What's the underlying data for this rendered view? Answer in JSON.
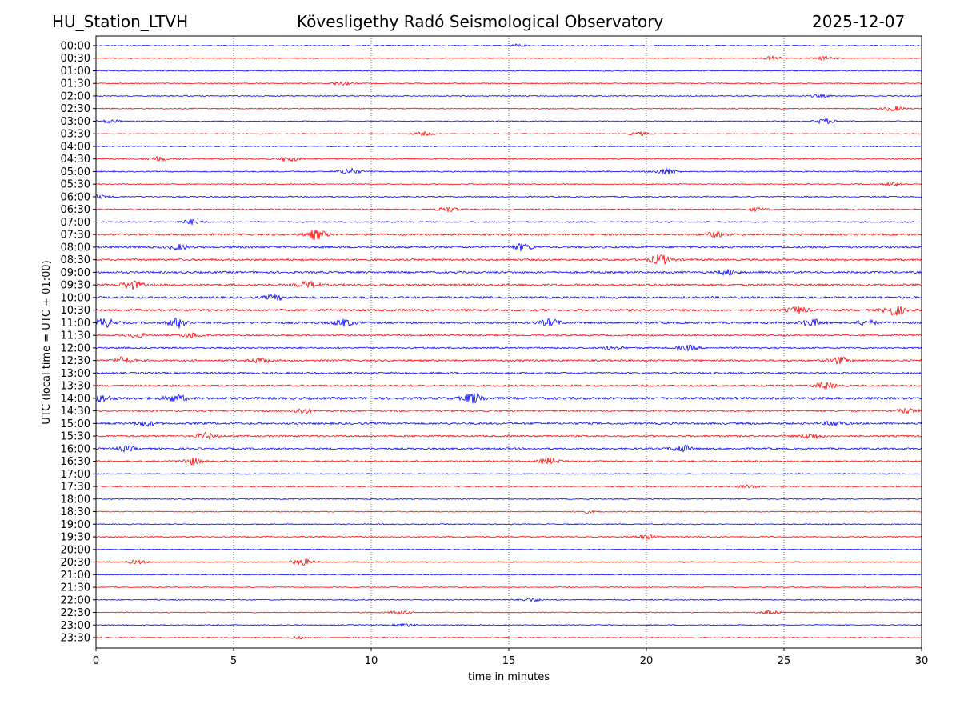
{
  "chart_data": {
    "type": "line",
    "title_left": "HU_Station_LTVH",
    "title": "Kövesligethy Radó Seismological Observatory",
    "title_right": "2025-12-07",
    "xlabel": "time in minutes",
    "ylabel": "UTC (local time = UTC + 01:00)",
    "xlim": [
      0,
      30
    ],
    "xticks": [
      "0",
      "5",
      "10",
      "15",
      "20",
      "25",
      "30"
    ],
    "grid": "vertical dotted at x ticks",
    "colors": [
      "#0000ff",
      "#ff0000"
    ],
    "rows": [
      {
        "label": "00:00",
        "noise": 1,
        "bursts": [
          [
            15.3,
            1.5
          ]
        ]
      },
      {
        "label": "00:30",
        "noise": 1,
        "bursts": [
          [
            24.6,
            2
          ],
          [
            26.5,
            2
          ]
        ]
      },
      {
        "label": "01:00",
        "noise": 1,
        "bursts": []
      },
      {
        "label": "01:30",
        "noise": 1,
        "bursts": [
          [
            8.9,
            2
          ]
        ]
      },
      {
        "label": "02:00",
        "noise": 1,
        "bursts": [
          [
            26.3,
            1.5
          ]
        ]
      },
      {
        "label": "02:30",
        "noise": 1,
        "bursts": [
          [
            29,
            3
          ]
        ]
      },
      {
        "label": "03:00",
        "noise": 1,
        "bursts": [
          [
            0.5,
            2
          ],
          [
            26.5,
            3
          ]
        ]
      },
      {
        "label": "03:30",
        "noise": 1,
        "bursts": [
          [
            11.9,
            2
          ],
          [
            19.8,
            2
          ]
        ]
      },
      {
        "label": "04:00",
        "noise": 1,
        "bursts": []
      },
      {
        "label": "04:30",
        "noise": 1.2,
        "bursts": [
          [
            2.2,
            3
          ],
          [
            7,
            3
          ]
        ]
      },
      {
        "label": "05:00",
        "noise": 1.2,
        "bursts": [
          [
            9.2,
            4
          ],
          [
            20.7,
            4
          ]
        ]
      },
      {
        "label": "05:30",
        "noise": 1,
        "bursts": [
          [
            29,
            2
          ]
        ]
      },
      {
        "label": "06:00",
        "noise": 1.2,
        "bursts": [
          [
            0.1,
            2
          ]
        ]
      },
      {
        "label": "06:30",
        "noise": 1.3,
        "bursts": [
          [
            12.8,
            3
          ],
          [
            24,
            2
          ]
        ]
      },
      {
        "label": "07:00",
        "noise": 1.3,
        "bursts": [
          [
            3.5,
            3
          ]
        ]
      },
      {
        "label": "07:30",
        "noise": 2,
        "bursts": [
          [
            8,
            6
          ],
          [
            22.5,
            3
          ]
        ]
      },
      {
        "label": "08:00",
        "noise": 2,
        "bursts": [
          [
            3,
            3
          ],
          [
            15.5,
            4
          ]
        ]
      },
      {
        "label": "08:30",
        "noise": 2,
        "bursts": [
          [
            20.5,
            6
          ]
        ]
      },
      {
        "label": "09:00",
        "noise": 2,
        "bursts": [
          [
            23,
            3
          ]
        ]
      },
      {
        "label": "09:30",
        "noise": 2.2,
        "bursts": [
          [
            1.3,
            5
          ],
          [
            7.7,
            4
          ]
        ]
      },
      {
        "label": "10:00",
        "noise": 2.2,
        "bursts": [
          [
            6.5,
            3
          ]
        ]
      },
      {
        "label": "10:30",
        "noise": 2.2,
        "bursts": [
          [
            29,
            6
          ],
          [
            25.5,
            4
          ]
        ]
      },
      {
        "label": "11:00",
        "noise": 2.2,
        "bursts": [
          [
            0.3,
            5
          ],
          [
            3,
            6
          ],
          [
            9,
            4
          ],
          [
            16.5,
            4
          ],
          [
            26,
            4
          ],
          [
            28,
            3
          ]
        ]
      },
      {
        "label": "11:30",
        "noise": 1.6,
        "bursts": [
          [
            1.5,
            3
          ],
          [
            3.5,
            3
          ]
        ]
      },
      {
        "label": "12:00",
        "noise": 1.6,
        "bursts": [
          [
            21.5,
            3
          ],
          [
            18.8,
            2
          ]
        ]
      },
      {
        "label": "12:30",
        "noise": 1.8,
        "bursts": [
          [
            1,
            4
          ],
          [
            6,
            3
          ],
          [
            27,
            4
          ]
        ]
      },
      {
        "label": "13:00",
        "noise": 1.8,
        "bursts": []
      },
      {
        "label": "13:30",
        "noise": 1.8,
        "bursts": [
          [
            26.5,
            4
          ]
        ]
      },
      {
        "label": "14:00",
        "noise": 2.5,
        "bursts": [
          [
            13.7,
            6
          ],
          [
            0.2,
            4
          ],
          [
            2.9,
            4
          ]
        ]
      },
      {
        "label": "14:30",
        "noise": 1.8,
        "bursts": [
          [
            7.5,
            3
          ],
          [
            29.5,
            3
          ]
        ]
      },
      {
        "label": "15:00",
        "noise": 2,
        "bursts": [
          [
            1.8,
            3
          ],
          [
            26.8,
            3
          ]
        ]
      },
      {
        "label": "15:30",
        "noise": 1.8,
        "bursts": [
          [
            4,
            4
          ],
          [
            26,
            3
          ]
        ]
      },
      {
        "label": "16:00",
        "noise": 1.8,
        "bursts": [
          [
            21.3,
            4
          ],
          [
            1.1,
            3
          ]
        ]
      },
      {
        "label": "16:30",
        "noise": 1.5,
        "bursts": [
          [
            3.5,
            4
          ],
          [
            16.5,
            4
          ]
        ]
      },
      {
        "label": "17:00",
        "noise": 1,
        "bursts": []
      },
      {
        "label": "17:30",
        "noise": 1,
        "bursts": [
          [
            23.7,
            2
          ]
        ]
      },
      {
        "label": "18:00",
        "noise": 1,
        "bursts": []
      },
      {
        "label": "18:30",
        "noise": 1,
        "bursts": [
          [
            17.8,
            1.5
          ]
        ]
      },
      {
        "label": "19:00",
        "noise": 1,
        "bursts": []
      },
      {
        "label": "19:30",
        "noise": 1.1,
        "bursts": [
          [
            20,
            2.5
          ]
        ]
      },
      {
        "label": "20:00",
        "noise": 0.8,
        "bursts": []
      },
      {
        "label": "20:30",
        "noise": 1.2,
        "bursts": [
          [
            7.5,
            4
          ],
          [
            1.5,
            2
          ]
        ]
      },
      {
        "label": "21:00",
        "noise": 0.9,
        "bursts": []
      },
      {
        "label": "21:30",
        "noise": 0.8,
        "bursts": []
      },
      {
        "label": "22:00",
        "noise": 1,
        "bursts": [
          [
            15.8,
            2
          ]
        ]
      },
      {
        "label": "22:30",
        "noise": 1,
        "bursts": [
          [
            11,
            2
          ],
          [
            24.5,
            2
          ]
        ]
      },
      {
        "label": "23:00",
        "noise": 1,
        "bursts": [
          [
            11.2,
            2
          ]
        ]
      },
      {
        "label": "23:30",
        "noise": 0.8,
        "bursts": [
          [
            7.3,
            1.5
          ]
        ]
      }
    ]
  }
}
